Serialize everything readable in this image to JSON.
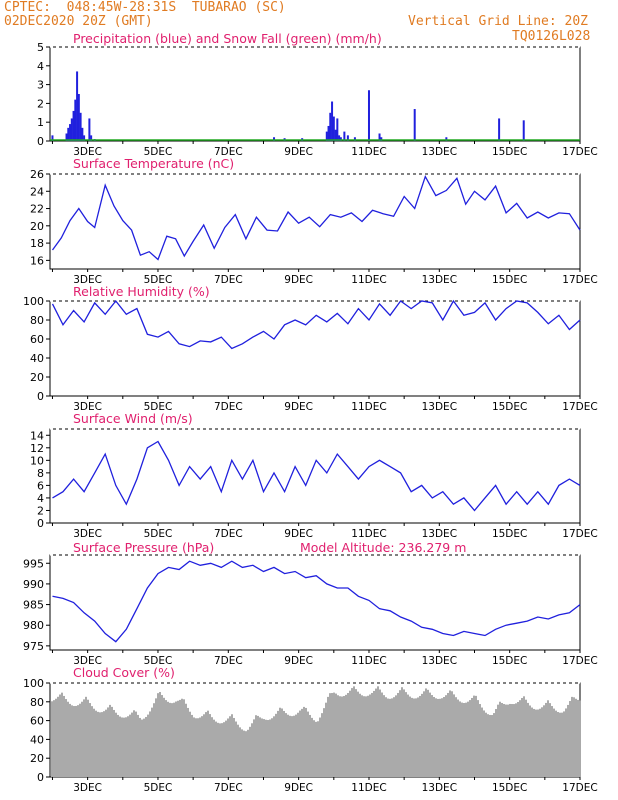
{
  "header": {
    "location": "CPTEC:  048:45W-28:31S  TUBARAO (SC)",
    "run": "02DEC2020 20Z (GMT)",
    "grid_line": "Vertical Grid Line: 20Z",
    "code": "TQ0126L028"
  },
  "colors": {
    "line": "#2020dd",
    "precip": "#2020dd",
    "snow": "#22aa22",
    "cloud": "#aaaaaa",
    "title": "#e0206e",
    "header": "#e07b22",
    "axis": "#000000"
  },
  "x_axis": {
    "day_ticks": [
      "3DEC",
      "5DEC",
      "7DEC",
      "9DEC",
      "11DEC",
      "13DEC",
      "15DEC",
      "17DEC"
    ]
  },
  "chart_data": [
    {
      "type": "bar",
      "title": "Precipitation (blue) and Snow Fall (green) (mm/h)",
      "ylim": [
        0,
        5
      ],
      "yticks": [
        "0",
        "1",
        "2",
        "3",
        "4",
        "5"
      ],
      "xlabel": "",
      "ylabel": "",
      "series": [
        {
          "name": "Precipitation",
          "x": [
            2.0,
            2.4,
            2.45,
            2.5,
            2.55,
            2.6,
            2.65,
            2.7,
            2.75,
            2.8,
            2.85,
            2.9,
            3.05,
            3.1,
            3.2,
            8.3,
            8.6,
            9.1,
            9.8,
            9.85,
            9.9,
            9.95,
            10.0,
            10.05,
            10.1,
            10.15,
            10.2,
            10.3,
            10.4,
            10.6,
            11.0,
            11.3,
            11.35,
            12.3,
            13.2,
            14.7,
            15.4
          ],
          "values": [
            0.3,
            0.4,
            0.7,
            0.9,
            1.2,
            1.6,
            2.2,
            3.7,
            2.5,
            1.5,
            0.7,
            0.3,
            1.2,
            0.3,
            0.1,
            0.2,
            0.15,
            0.15,
            0.5,
            0.8,
            1.5,
            2.1,
            1.3,
            0.6,
            1.2,
            0.3,
            0.2,
            0.5,
            0.3,
            0.2,
            2.7,
            0.4,
            0.2,
            1.7,
            0.2,
            1.2,
            1.1
          ]
        },
        {
          "name": "Snow Fall",
          "x": [],
          "values": []
        }
      ]
    },
    {
      "type": "line",
      "title": "Surface Temperature (nC)",
      "ylim": [
        15,
        26
      ],
      "yticks": [
        "16",
        "18",
        "20",
        "22",
        "24",
        "26"
      ],
      "x": [
        2.0,
        2.25,
        2.5,
        2.75,
        3.0,
        3.2,
        3.5,
        3.75,
        4.0,
        4.25,
        4.5,
        4.75,
        5.0,
        5.25,
        5.5,
        5.75,
        6.0,
        6.3,
        6.6,
        6.9,
        7.2,
        7.5,
        7.8,
        8.1,
        8.4,
        8.7,
        9.0,
        9.3,
        9.6,
        9.9,
        10.2,
        10.5,
        10.8,
        11.1,
        11.4,
        11.7,
        12.0,
        12.3,
        12.6,
        12.9,
        13.2,
        13.5,
        13.75,
        14.0,
        14.3,
        14.6,
        14.9,
        15.2,
        15.5,
        15.8,
        16.1,
        16.4,
        16.7,
        17.0
      ],
      "series": [
        {
          "name": "",
          "values": [
            17.2,
            18.6,
            20.6,
            22.0,
            20.5,
            19.8,
            24.7,
            22.3,
            20.6,
            19.5,
            16.6,
            17.0,
            16.1,
            18.8,
            18.5,
            16.5,
            18.2,
            20.1,
            17.4,
            19.8,
            21.3,
            18.5,
            21.0,
            19.5,
            19.4,
            21.6,
            20.3,
            21.0,
            19.9,
            21.3,
            21.0,
            21.5,
            20.5,
            21.8,
            21.4,
            21.1,
            23.4,
            22.0,
            25.7,
            23.5,
            24.1,
            25.5,
            22.5,
            24.0,
            23.0,
            24.6,
            21.5,
            22.6,
            20.9,
            21.6,
            20.9,
            21.5,
            21.4,
            19.5
          ]
        }
      ]
    },
    {
      "type": "line",
      "title": "Relative Humidity (%)",
      "ylim": [
        0,
        100
      ],
      "yticks": [
        "0",
        "20",
        "40",
        "60",
        "80",
        "100"
      ],
      "x": [
        2.0,
        2.3,
        2.6,
        2.9,
        3.2,
        3.5,
        3.8,
        4.1,
        4.4,
        4.7,
        5.0,
        5.3,
        5.6,
        5.9,
        6.2,
        6.5,
        6.8,
        7.1,
        7.4,
        7.7,
        8.0,
        8.3,
        8.6,
        8.9,
        9.2,
        9.5,
        9.8,
        10.1,
        10.4,
        10.7,
        11.0,
        11.3,
        11.6,
        11.9,
        12.2,
        12.5,
        12.8,
        13.1,
        13.4,
        13.7,
        14.0,
        14.3,
        14.6,
        14.9,
        15.2,
        15.5,
        15.8,
        16.1,
        16.4,
        16.7,
        17.0
      ],
      "series": [
        {
          "name": "",
          "values": [
            97,
            75,
            90,
            78,
            98,
            86,
            100,
            86,
            92,
            65,
            62,
            68,
            55,
            52,
            58,
            57,
            62,
            50,
            55,
            62,
            68,
            60,
            75,
            80,
            75,
            85,
            78,
            87,
            76,
            92,
            80,
            97,
            85,
            100,
            92,
            100,
            98,
            80,
            100,
            85,
            88,
            98,
            80,
            92,
            100,
            98,
            88,
            76,
            85,
            70,
            80
          ]
        }
      ]
    },
    {
      "type": "line",
      "title": "Surface Wind (m/s)",
      "ylim": [
        0,
        15
      ],
      "yticks": [
        "0",
        "2",
        "4",
        "6",
        "8",
        "10",
        "12",
        "14"
      ],
      "x": [
        2.0,
        2.3,
        2.6,
        2.9,
        3.2,
        3.5,
        3.8,
        4.1,
        4.4,
        4.7,
        5.0,
        5.3,
        5.6,
        5.9,
        6.2,
        6.5,
        6.8,
        7.1,
        7.4,
        7.7,
        8.0,
        8.3,
        8.6,
        8.9,
        9.2,
        9.5,
        9.8,
        10.1,
        10.4,
        10.7,
        11.0,
        11.3,
        11.6,
        11.9,
        12.2,
        12.5,
        12.8,
        13.1,
        13.4,
        13.7,
        14.0,
        14.3,
        14.6,
        14.9,
        15.2,
        15.5,
        15.8,
        16.1,
        16.4,
        16.7,
        17.0
      ],
      "series": [
        {
          "name": "",
          "values": [
            4,
            5,
            7,
            5,
            8,
            11,
            6,
            3,
            7,
            12,
            13,
            10,
            6,
            9,
            7,
            9,
            5,
            10,
            7,
            10,
            5,
            8,
            5,
            9,
            6,
            10,
            8,
            11,
            9,
            7,
            9,
            10,
            9,
            8,
            5,
            6,
            4,
            5,
            3,
            4,
            2,
            4,
            6,
            3,
            5,
            3,
            5,
            3,
            6,
            7,
            6
          ]
        }
      ]
    },
    {
      "type": "line",
      "title": "Surface Pressure (hPa)",
      "subtitle": "Model Altitude: 236.279 m",
      "ylim": [
        974,
        997
      ],
      "yticks": [
        "975",
        "980",
        "985",
        "990",
        "995"
      ],
      "x": [
        2.0,
        2.3,
        2.6,
        2.9,
        3.2,
        3.5,
        3.8,
        4.1,
        4.4,
        4.7,
        5.0,
        5.3,
        5.6,
        5.9,
        6.2,
        6.5,
        6.8,
        7.1,
        7.4,
        7.7,
        8.0,
        8.3,
        8.6,
        8.9,
        9.2,
        9.5,
        9.8,
        10.1,
        10.4,
        10.7,
        11.0,
        11.3,
        11.6,
        11.9,
        12.2,
        12.5,
        12.8,
        13.1,
        13.4,
        13.7,
        14.0,
        14.3,
        14.6,
        14.9,
        15.2,
        15.5,
        15.8,
        16.1,
        16.4,
        16.7,
        17.0
      ],
      "series": [
        {
          "name": "",
          "values": [
            987,
            986.5,
            985.5,
            983,
            981,
            978,
            976,
            979,
            984,
            989,
            992.5,
            994,
            993.5,
            995.5,
            994.5,
            995,
            994,
            995.5,
            994,
            994.5,
            993,
            994,
            992.5,
            993,
            991.5,
            992,
            990,
            989,
            989,
            987,
            986,
            984,
            983.5,
            982,
            981,
            979.5,
            979,
            978,
            977.5,
            978.5,
            978,
            977.5,
            979,
            980,
            980.5,
            981,
            982,
            981.5,
            982.5,
            983,
            985
          ]
        }
      ]
    },
    {
      "type": "bar",
      "title": "Cloud Cover (%)",
      "ylim": [
        0,
        100
      ],
      "yticks": [
        "0",
        "20",
        "40",
        "60",
        "80",
        "100"
      ],
      "x": [
        2.0,
        2.5,
        3.0,
        3.5,
        4.0,
        4.5,
        5.0,
        5.5,
        6.0,
        6.5,
        7.0,
        7.5,
        8.0,
        8.5,
        9.0,
        9.5,
        10.0,
        10.5,
        11.0,
        11.5,
        12.0,
        12.5,
        13.0,
        13.5,
        14.0,
        14.5,
        15.0,
        15.5,
        16.0,
        16.5,
        17.0
      ],
      "values": [
        92,
        88,
        85,
        78,
        75,
        70,
        92,
        90,
        75,
        70,
        68,
        60,
        72,
        75,
        78,
        70,
        98,
        97,
        98,
        95,
        96,
        95,
        95,
        92,
        88,
        75,
        90,
        85,
        82,
        80,
        92
      ]
    }
  ]
}
